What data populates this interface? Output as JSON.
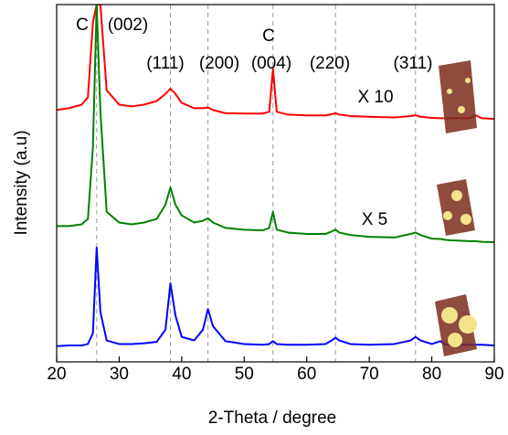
{
  "chart_data": {
    "type": "line",
    "xlabel": "2-Theta / degree",
    "ylabel": "Intensity (a.u)",
    "xlim": [
      20,
      90
    ],
    "xticks": [
      20,
      30,
      40,
      50,
      60,
      70,
      80,
      90
    ],
    "ylim": [
      0,
      100
    ],
    "peak_lines": [
      26.4,
      38.2,
      44.2,
      54.6,
      64.6,
      77.4
    ],
    "annotations": [
      "C",
      "(002)",
      "(111)",
      "(200)",
      "(004)",
      "C",
      "(220)",
      "(311)",
      "X 10",
      "X 5"
    ],
    "x": [
      20,
      22,
      24,
      25,
      25.8,
      26.4,
      27,
      28,
      30,
      32,
      34,
      36,
      37.4,
      38.2,
      39,
      40,
      42,
      43.4,
      44.2,
      45,
      47,
      50,
      53,
      54,
      54.6,
      55.2,
      57,
      60,
      63,
      64,
      64.6,
      65.2,
      67,
      70,
      74,
      76.6,
      77.4,
      78.2,
      80,
      81.4,
      82,
      83,
      86,
      87,
      88,
      90
    ],
    "series": [
      {
        "color": "#ff0000",
        "values": [
          70.5,
          71,
          72,
          74,
          95,
          100,
          100,
          76,
          72,
          71.5,
          72,
          73,
          75,
          76.5,
          75,
          72.5,
          71,
          71,
          71.2,
          70.5,
          69.6,
          69.5,
          69.5,
          70,
          82,
          70,
          69.2,
          69,
          69,
          69.3,
          69.6,
          69.2,
          68.8,
          68.6,
          68.4,
          68.8,
          69,
          68.6,
          68.3,
          68.2,
          68.2,
          68.2,
          68.2,
          69,
          68.2,
          68
        ]
      },
      {
        "color": "#008000",
        "values": [
          38,
          38,
          38.5,
          40,
          60,
          100,
          70,
          42,
          39,
          38.5,
          39,
          40,
          44,
          48.8,
          44,
          41,
          39,
          39.5,
          40.2,
          39,
          37.5,
          37,
          36.8,
          37.5,
          42,
          37,
          36.2,
          35.8,
          35.8,
          36.5,
          37,
          36.2,
          35.5,
          35,
          34.8,
          35.8,
          36.2,
          35.5,
          34.5,
          34.4,
          34.2,
          34,
          33.8,
          33.8,
          33.6,
          33.5
        ]
      },
      {
        "color": "#0000ff",
        "values": [
          4.4,
          4.6,
          4.6,
          5,
          8,
          32,
          14,
          6,
          5,
          5,
          5.2,
          5.6,
          9,
          22,
          13,
          7,
          6,
          9,
          14.8,
          10,
          5.8,
          5,
          4.8,
          5,
          5.8,
          5,
          4.8,
          4.8,
          5,
          6,
          6.8,
          6,
          5,
          4.8,
          5,
          6,
          7,
          6,
          5,
          5.8,
          5,
          4.8,
          4.8,
          4.8,
          4.8,
          4.6
        ]
      }
    ]
  }
}
